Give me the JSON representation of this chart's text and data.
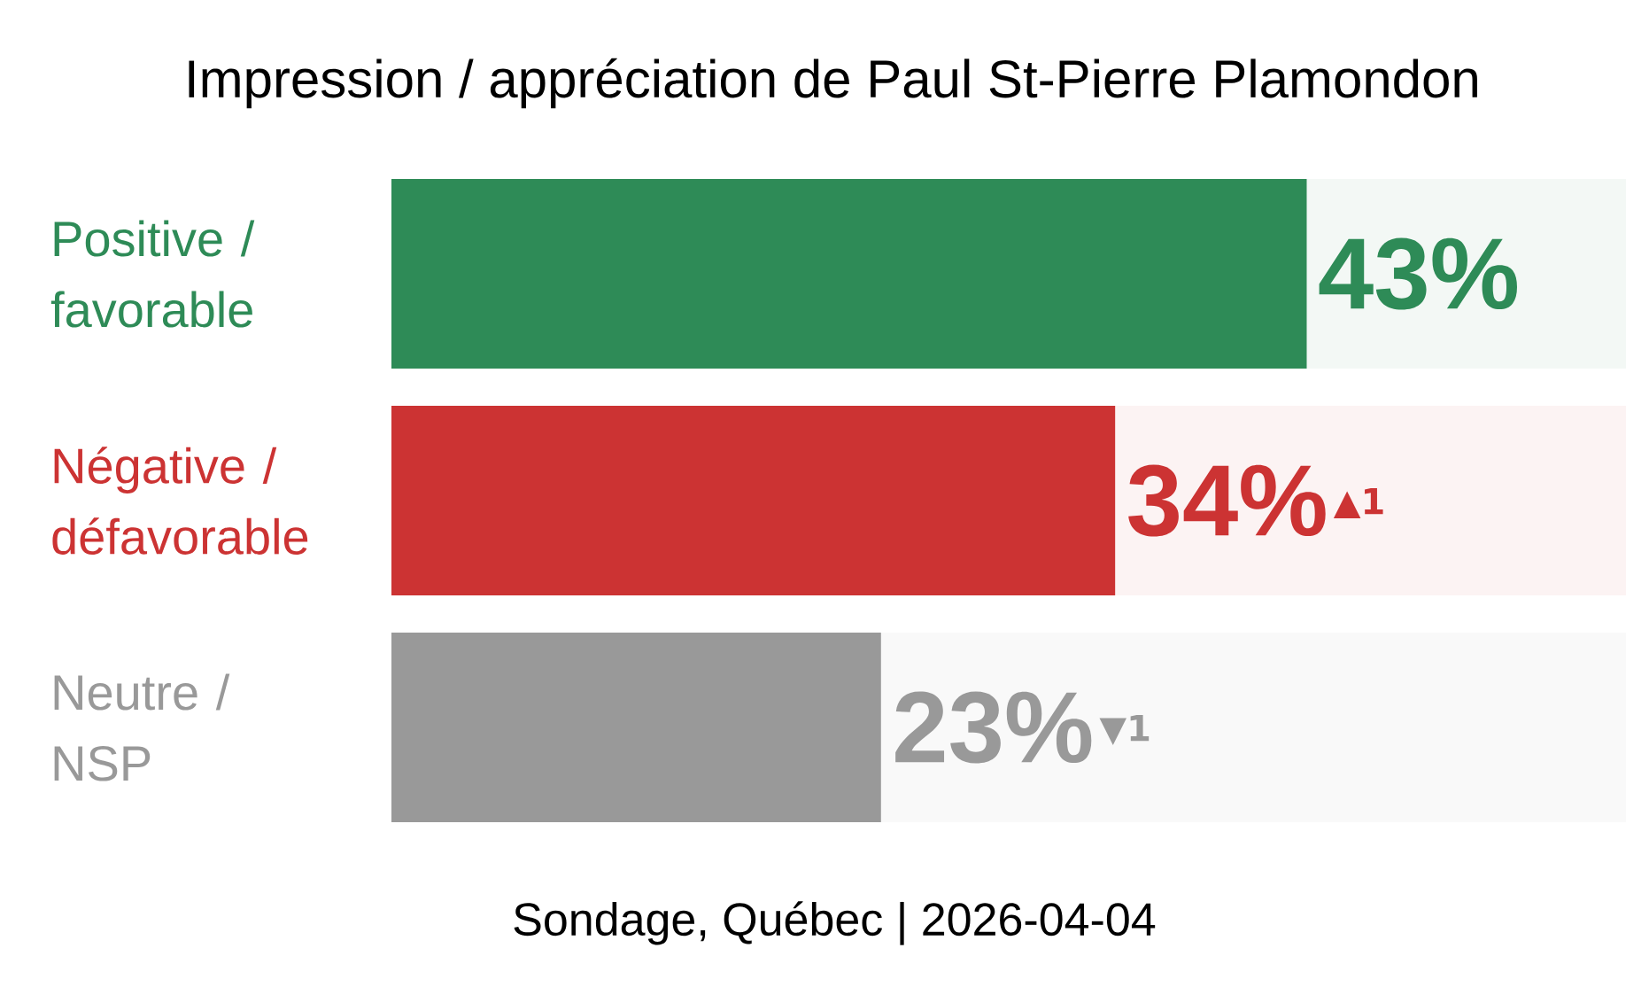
{
  "chart_data": {
    "type": "bar",
    "orientation": "horizontal",
    "title": "Impression / appréciation de Paul St-Pierre Plamondon",
    "categories": [
      "Positive / favorable",
      "Négative / défavorable",
      "Neutre / NSP"
    ],
    "values": [
      43,
      34,
      23
    ],
    "colors": [
      "#2e8b57",
      "#cc3333",
      "#999999"
    ],
    "value_labels": [
      "43%",
      "34%",
      "23%"
    ],
    "xlim": [
      0,
      58
    ],
    "tick_labels": "y",
    "annotations": [
      "▲1",
      "▼1",
      "Sondage, Québec | 2026-04-04"
    ]
  }
}
